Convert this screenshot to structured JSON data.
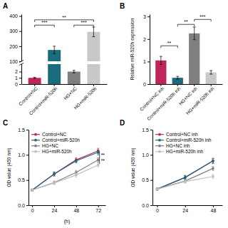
{
  "chart_data": [
    {
      "type": "bar",
      "title": "A",
      "categories": [
        "Control+NC",
        "Control+miR-520h",
        "HG+NC",
        "HG+miR-520h"
      ],
      "values": [
        1.0,
        175.0,
        2.0,
        295.0
      ],
      "errors": [
        0.1,
        25.0,
        0.2,
        32.0
      ],
      "colors": [
        "#c0245c",
        "#1a6b7c",
        "#7f7f7f",
        "#c8c8c8"
      ],
      "ylim": [
        [
          0,
          3.2
        ],
        [
          100,
          412
        ]
      ],
      "yticks": [
        0,
        1,
        2,
        100,
        200,
        300,
        400
      ],
      "annotations": [
        {
          "text": "***",
          "from": "Control+NC",
          "to": "Control+miR-520h",
          "y": 340
        },
        {
          "text": "**",
          "from": "Control+NC",
          "to": "HG+miR-520h",
          "y": 375
        },
        {
          "text": "***",
          "from": "HG+NC",
          "to": "HG+miR-520h",
          "y": 340
        }
      ]
    },
    {
      "type": "bar",
      "title": "B",
      "ylabel": "Relative miR-520h expression",
      "categories": [
        "Control+NC inh",
        "Control+miR-520h inh",
        "HG+NC inh",
        "HG+miR-520h inh"
      ],
      "values": [
        1.05,
        0.28,
        2.25,
        0.52
      ],
      "errors": [
        0.18,
        0.06,
        0.28,
        0.08
      ],
      "colors": [
        "#c0245c",
        "#1a6b7c",
        "#7f7f7f",
        "#c8c8c8"
      ],
      "ylim": [
        0,
        3.1
      ],
      "yticks": [
        0,
        1,
        2,
        3
      ],
      "annotations": [
        {
          "text": "**",
          "from": "Control+NC inh",
          "to": "Control+miR-520h inh",
          "y": 1.7
        },
        {
          "text": "**",
          "from": "Control+miR-520h inh",
          "to": "HG+NC inh",
          "y": 2.65
        },
        {
          "text": "***",
          "from": "HG+NC inh",
          "to": "HG+miR-520h inh",
          "y": 2.87
        }
      ]
    },
    {
      "type": "line",
      "title": "C",
      "xlabel": "(h)",
      "ylabel": "OD value (450 nm)",
      "x": [
        0,
        24,
        48,
        72
      ],
      "xlim": [
        -4,
        80
      ],
      "xticks": [
        0,
        24,
        48,
        72
      ],
      "ylim": [
        0.0,
        1.5
      ],
      "yticks": [
        {
          "value": 0,
          "label": "0.0"
        },
        0.5,
        {
          "value": 1,
          "label": "1.0"
        },
        1.5
      ],
      "legend": "upper left",
      "series": [
        {
          "name": "Control+NC",
          "color": "#c0245c",
          "marker": "circle",
          "values": [
            0.3,
            0.62,
            0.9,
            1.08
          ],
          "errors": [
            0.02,
            0.04,
            0.04,
            0.05
          ]
        },
        {
          "name": "Control+miR-520h",
          "color": "#1a6b7c",
          "marker": "circle",
          "values": [
            0.3,
            0.62,
            0.88,
            1.05
          ],
          "errors": [
            0.02,
            0.04,
            0.04,
            0.05
          ]
        },
        {
          "name": "HG+NC",
          "color": "#808080",
          "marker": "circle",
          "values": [
            0.3,
            0.45,
            0.65,
            0.9
          ],
          "errors": [
            0.02,
            0.03,
            0.04,
            0.04
          ]
        },
        {
          "name": "HG+miR-520h",
          "color": "#c0c0c0",
          "marker": "circle",
          "values": [
            0.3,
            0.44,
            0.6,
            0.8
          ],
          "errors": [
            0.02,
            0.03,
            0.04,
            0.04
          ]
        }
      ],
      "annotations": [
        {
          "texts": [
            "**",
            "**"
          ],
          "x": 73.5,
          "y": [
            0.82,
            1.07
          ]
        }
      ]
    },
    {
      "type": "line",
      "title": "D",
      "ylabel": "OD value (450 nm)",
      "x": [
        0,
        24,
        48
      ],
      "xlim": [
        -4,
        56
      ],
      "xticks": [
        0,
        24,
        48
      ],
      "ylim": [
        0.0,
        1.5
      ],
      "yticks": [
        {
          "value": 0,
          "label": "0.0"
        },
        0.5,
        {
          "value": 1,
          "label": "1.0"
        },
        1.5
      ],
      "legend": "upper left",
      "series": [
        {
          "name": "Control+NC inh",
          "color": "#c0245c",
          "marker": "circle",
          "values": [
            0.32,
            0.55,
            0.88
          ],
          "errors": [
            0.02,
            0.04,
            0.05
          ]
        },
        {
          "name": "Control+miR-520h inh",
          "color": "#1a6b7c",
          "marker": "circle",
          "values": [
            0.32,
            0.55,
            0.88
          ],
          "errors": [
            0.02,
            0.04,
            0.05
          ]
        },
        {
          "name": "HG+NC inh",
          "color": "#808080",
          "marker": "circle",
          "values": [
            0.32,
            0.48,
            0.73
          ],
          "errors": [
            0.02,
            0.03,
            0.04
          ]
        },
        {
          "name": "HG+miR-520h inh",
          "color": "#c0c0c0",
          "marker": "circle",
          "values": [
            0.32,
            0.47,
            0.57
          ],
          "errors": [
            0.02,
            0.03,
            0.04
          ]
        }
      ]
    }
  ]
}
